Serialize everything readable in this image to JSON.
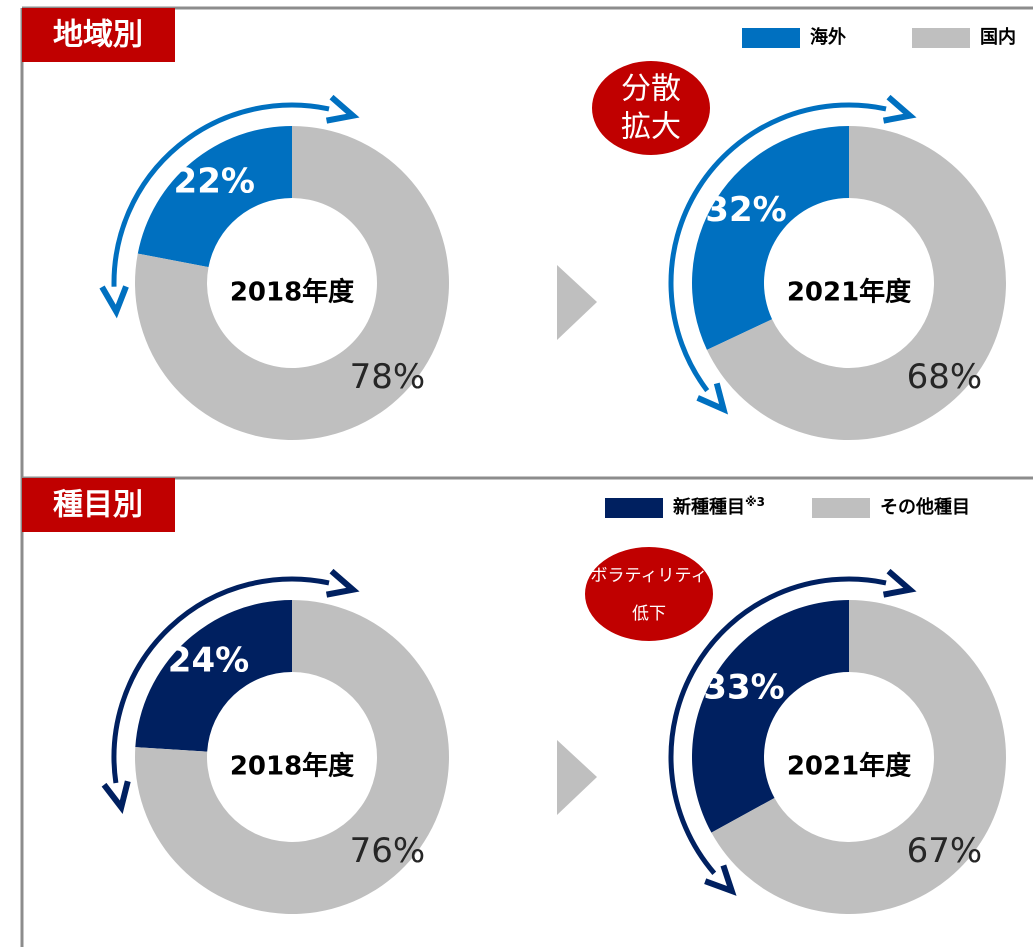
{
  "chart_data": [
    {
      "type": "donut",
      "title": "2018年度",
      "categories": [
        "海外",
        "国内"
      ],
      "values": [
        22,
        78
      ],
      "value_labels": [
        "22%",
        "78%"
      ],
      "colors": [
        "#0070c0",
        "#bfbfbf"
      ]
    },
    {
      "type": "donut",
      "title": "2021年度",
      "categories": [
        "海外",
        "国内"
      ],
      "values": [
        32,
        68
      ],
      "value_labels": [
        "32%",
        "68%"
      ],
      "colors": [
        "#0070c0",
        "#bfbfbf"
      ]
    },
    {
      "type": "donut",
      "title": "2018年度",
      "categories": [
        "新種種目",
        "その他種目"
      ],
      "values": [
        24,
        76
      ],
      "value_labels": [
        "24%",
        "76%"
      ],
      "colors": [
        "#002060",
        "#bfbfbf"
      ]
    },
    {
      "type": "donut",
      "title": "2021年度",
      "categories": [
        "新種種目",
        "その他種目"
      ],
      "values": [
        33,
        67
      ],
      "value_labels": [
        "33%",
        "67%"
      ],
      "colors": [
        "#002060",
        "#bfbfbf"
      ]
    }
  ],
  "sections": [
    {
      "title": "地域別",
      "badge": [
        "分散",
        "拡大"
      ]
    },
    {
      "title": "種目別",
      "badge": [
        "ボラティリティ",
        "低下"
      ],
      "legend_note": "※3"
    }
  ]
}
